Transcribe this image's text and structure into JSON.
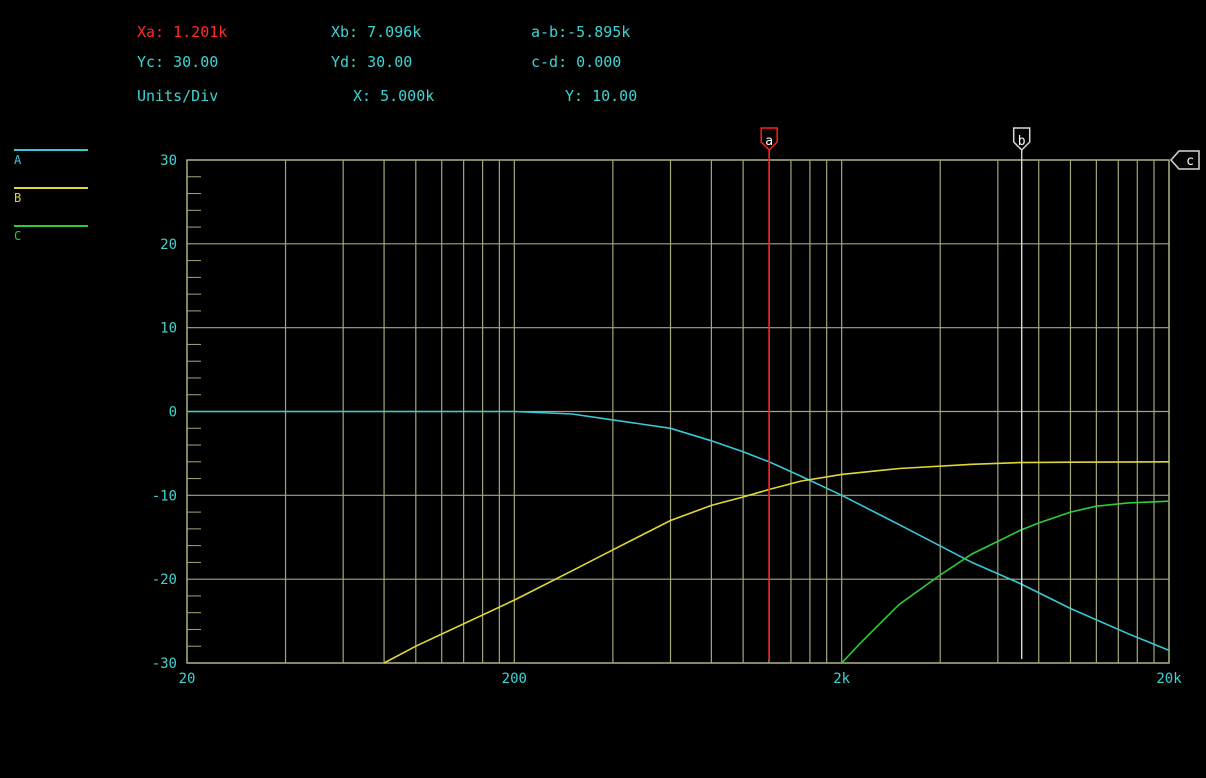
{
  "readouts": {
    "xa": "Xa: 1.201k",
    "xb": "Xb: 7.096k",
    "a_minus_b": "a-b:-5.895k",
    "yc": "Yc: 30.00",
    "yd": "Yd: 30.00",
    "c_minus_d": "c-d: 0.000",
    "units_div": "Units/Div",
    "x_units": "X: 5.000k",
    "y_units": "Y: 10.00"
  },
  "colors": {
    "background": "#000000",
    "grid": "#a5a57a",
    "axis_text": "#3fd3d3",
    "readout_red": "#ff2a2a",
    "readout_cyan": "#3fd3d3",
    "series_a": "#38c8d8",
    "series_b": "#e0d832",
    "series_c": "#2ecc3a",
    "cursor_a": "#ff2020",
    "cursor_b": "#d8d8d8"
  },
  "cursors": {
    "a": {
      "label": "a",
      "x": 1201
    },
    "b": {
      "label": "b",
      "x": 7096
    },
    "c": {
      "label": "c",
      "y": 30
    }
  },
  "chart_data": {
    "type": "line",
    "x_scale": "log",
    "xlim": [
      20,
      20000
    ],
    "ylim": [
      -30,
      30
    ],
    "y_ticks": [
      30,
      20,
      10,
      0,
      -10,
      -20,
      -30
    ],
    "y_tick_labels": [
      "30",
      "20",
      "10",
      "0",
      "-10",
      "-20",
      "-30"
    ],
    "x_ticks": [
      20,
      200,
      2000,
      20000
    ],
    "x_tick_labels": [
      "20",
      "200",
      "2k",
      "20k"
    ],
    "grid": true,
    "legend_position": "left",
    "series": [
      {
        "name": "A",
        "color": "#38c8d8",
        "x": [
          20,
          100,
          200,
          300,
          400,
          600,
          800,
          1000,
          1200,
          1500,
          2000,
          3000,
          5000,
          7000,
          10000,
          15000,
          20000
        ],
        "y": [
          0,
          0,
          0,
          -0.3,
          -1,
          -2,
          -3.5,
          -4.8,
          -6,
          -7.7,
          -10,
          -13.5,
          -18,
          -20.5,
          -23.5,
          -26.5,
          -28.5
        ]
      },
      {
        "name": "B",
        "color": "#e0d832",
        "x": [
          80,
          100,
          200,
          300,
          400,
          600,
          800,
          1000,
          1200,
          1500,
          2000,
          3000,
          5000,
          7000,
          10000,
          20000
        ],
        "y": [
          -30,
          -28,
          -22.5,
          -19,
          -16.5,
          -13,
          -11.2,
          -10.2,
          -9.3,
          -8.3,
          -7.5,
          -6.8,
          -6.3,
          -6.1,
          -6.05,
          -6
        ]
      },
      {
        "name": "C",
        "color": "#2ecc3a",
        "x": [
          2000,
          2300,
          3000,
          4000,
          5000,
          6000,
          7000,
          8000,
          10000,
          12000,
          15000,
          20000
        ],
        "y": [
          -30,
          -27.5,
          -23,
          -19.5,
          -17,
          -15.5,
          -14.2,
          -13.3,
          -12,
          -11.3,
          -10.9,
          -10.7
        ]
      }
    ]
  }
}
